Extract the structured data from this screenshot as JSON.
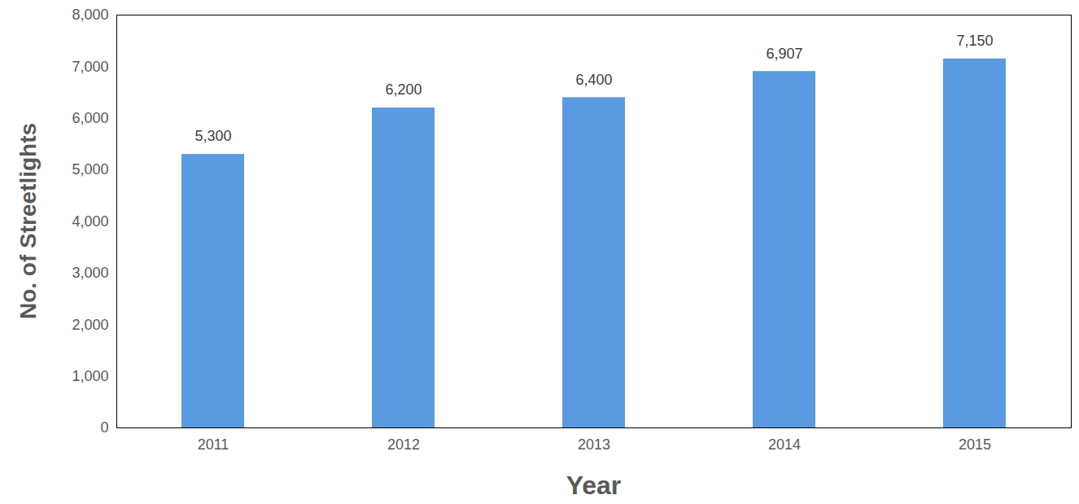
{
  "chart_data": {
    "type": "bar",
    "x_label": "Year",
    "y_label": "No. of Streetlights",
    "categories": [
      "2011",
      "2012",
      "2013",
      "2014",
      "2015"
    ],
    "values": [
      5300,
      6200,
      6400,
      6907,
      7150
    ],
    "value_labels": [
      "5,300",
      "6,200",
      "6,400",
      "6,907",
      "7,150"
    ],
    "data_labels": true,
    "color": "#5a9ae0",
    "ylim": [
      0,
      8000
    ],
    "yticks": [
      0,
      {
        "value": 1000,
        "label": "1,000"
      },
      {
        "value": 2000,
        "label": "2,000"
      },
      {
        "value": 3000,
        "label": "3,000"
      },
      {
        "value": 4000,
        "label": "4,000"
      },
      {
        "value": 5000,
        "label": "5,000"
      },
      {
        "value": 6000,
        "label": "6,000"
      },
      {
        "value": 7000,
        "label": "7,000"
      },
      {
        "value": 8000,
        "label": "8,000"
      }
    ],
    "grid": false
  }
}
